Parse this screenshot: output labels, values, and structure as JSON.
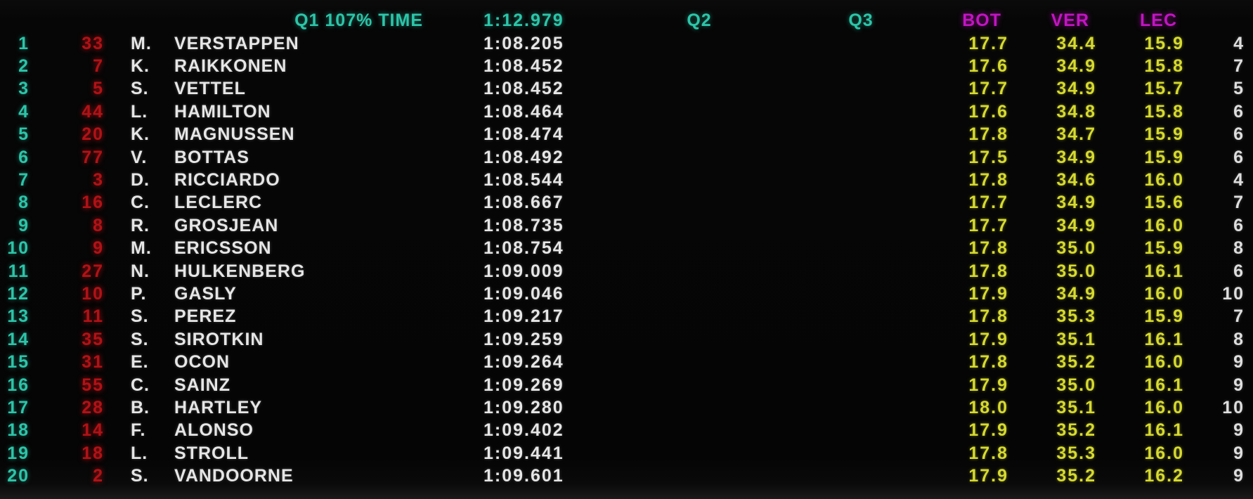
{
  "header": {
    "q1_cutoff_label": "Q1 107% TIME",
    "q1_cutoff_time": "1:12.979",
    "q2_label": "Q2",
    "q3_label": "Q3",
    "sector1_best_driver": "BOT",
    "sector2_best_driver": "VER",
    "sector3_best_driver": "LEC"
  },
  "colors": {
    "teal": "#2cc5a9",
    "magenta": "#c214c2",
    "yellow": "#d6da2e",
    "red": "#b11216",
    "white": "#e6e6e6",
    "laps": "#dedede"
  },
  "rows": [
    {
      "pos": "1",
      "num": "33",
      "initial": "M.",
      "name": "VERSTAPPEN",
      "q1": "1:08.205",
      "q2": "",
      "q3": "",
      "s1": "17.7",
      "s2": "34.4",
      "s3": "15.9",
      "laps": "4"
    },
    {
      "pos": "2",
      "num": "7",
      "initial": "K.",
      "name": "RAIKKONEN",
      "q1": "1:08.452",
      "q2": "",
      "q3": "",
      "s1": "17.6",
      "s2": "34.9",
      "s3": "15.8",
      "laps": "7"
    },
    {
      "pos": "3",
      "num": "5",
      "initial": "S.",
      "name": "VETTEL",
      "q1": "1:08.452",
      "q2": "",
      "q3": "",
      "s1": "17.7",
      "s2": "34.9",
      "s3": "15.7",
      "laps": "5"
    },
    {
      "pos": "4",
      "num": "44",
      "initial": "L.",
      "name": "HAMILTON",
      "q1": "1:08.464",
      "q2": "",
      "q3": "",
      "s1": "17.6",
      "s2": "34.8",
      "s3": "15.8",
      "laps": "6"
    },
    {
      "pos": "5",
      "num": "20",
      "initial": "K.",
      "name": "MAGNUSSEN",
      "q1": "1:08.474",
      "q2": "",
      "q3": "",
      "s1": "17.8",
      "s2": "34.7",
      "s3": "15.9",
      "laps": "6"
    },
    {
      "pos": "6",
      "num": "77",
      "initial": "V.",
      "name": "BOTTAS",
      "q1": "1:08.492",
      "q2": "",
      "q3": "",
      "s1": "17.5",
      "s2": "34.9",
      "s3": "15.9",
      "laps": "6"
    },
    {
      "pos": "7",
      "num": "3",
      "initial": "D.",
      "name": "RICCIARDO",
      "q1": "1:08.544",
      "q2": "",
      "q3": "",
      "s1": "17.8",
      "s2": "34.6",
      "s3": "16.0",
      "laps": "4"
    },
    {
      "pos": "8",
      "num": "16",
      "initial": "C.",
      "name": "LECLERC",
      "q1": "1:08.667",
      "q2": "",
      "q3": "",
      "s1": "17.7",
      "s2": "34.9",
      "s3": "15.6",
      "laps": "7"
    },
    {
      "pos": "9",
      "num": "8",
      "initial": "R.",
      "name": "GROSJEAN",
      "q1": "1:08.735",
      "q2": "",
      "q3": "",
      "s1": "17.7",
      "s2": "34.9",
      "s3": "16.0",
      "laps": "6"
    },
    {
      "pos": "10",
      "num": "9",
      "initial": "M.",
      "name": "ERICSSON",
      "q1": "1:08.754",
      "q2": "",
      "q3": "",
      "s1": "17.8",
      "s2": "35.0",
      "s3": "15.9",
      "laps": "8"
    },
    {
      "pos": "11",
      "num": "27",
      "initial": "N.",
      "name": "HULKENBERG",
      "q1": "1:09.009",
      "q2": "",
      "q3": "",
      "s1": "17.8",
      "s2": "35.0",
      "s3": "16.1",
      "laps": "6"
    },
    {
      "pos": "12",
      "num": "10",
      "initial": "P.",
      "name": "GASLY",
      "q1": "1:09.046",
      "q2": "",
      "q3": "",
      "s1": "17.9",
      "s2": "34.9",
      "s3": "16.0",
      "laps": "10"
    },
    {
      "pos": "13",
      "num": "11",
      "initial": "S.",
      "name": "PEREZ",
      "q1": "1:09.217",
      "q2": "",
      "q3": "",
      "s1": "17.8",
      "s2": "35.3",
      "s3": "15.9",
      "laps": "7"
    },
    {
      "pos": "14",
      "num": "35",
      "initial": "S.",
      "name": "SIROTKIN",
      "q1": "1:09.259",
      "q2": "",
      "q3": "",
      "s1": "17.9",
      "s2": "35.1",
      "s3": "16.1",
      "laps": "8"
    },
    {
      "pos": "15",
      "num": "31",
      "initial": "E.",
      "name": "OCON",
      "q1": "1:09.264",
      "q2": "",
      "q3": "",
      "s1": "17.8",
      "s2": "35.2",
      "s3": "16.0",
      "laps": "9"
    },
    {
      "pos": "16",
      "num": "55",
      "initial": "C.",
      "name": "SAINZ",
      "q1": "1:09.269",
      "q2": "",
      "q3": "",
      "s1": "17.9",
      "s2": "35.0",
      "s3": "16.1",
      "laps": "9"
    },
    {
      "pos": "17",
      "num": "28",
      "initial": "B.",
      "name": "HARTLEY",
      "q1": "1:09.280",
      "q2": "",
      "q3": "",
      "s1": "18.0",
      "s2": "35.1",
      "s3": "16.0",
      "laps": "10"
    },
    {
      "pos": "18",
      "num": "14",
      "initial": "F.",
      "name": "ALONSO",
      "q1": "1:09.402",
      "q2": "",
      "q3": "",
      "s1": "17.9",
      "s2": "35.2",
      "s3": "16.1",
      "laps": "9"
    },
    {
      "pos": "19",
      "num": "18",
      "initial": "L.",
      "name": "STROLL",
      "q1": "1:09.441",
      "q2": "",
      "q3": "",
      "s1": "17.8",
      "s2": "35.3",
      "s3": "16.0",
      "laps": "9"
    },
    {
      "pos": "20",
      "num": "2",
      "initial": "S.",
      "name": "VANDOORNE",
      "q1": "1:09.601",
      "q2": "",
      "q3": "",
      "s1": "17.9",
      "s2": "35.2",
      "s3": "16.2",
      "laps": "9"
    }
  ]
}
